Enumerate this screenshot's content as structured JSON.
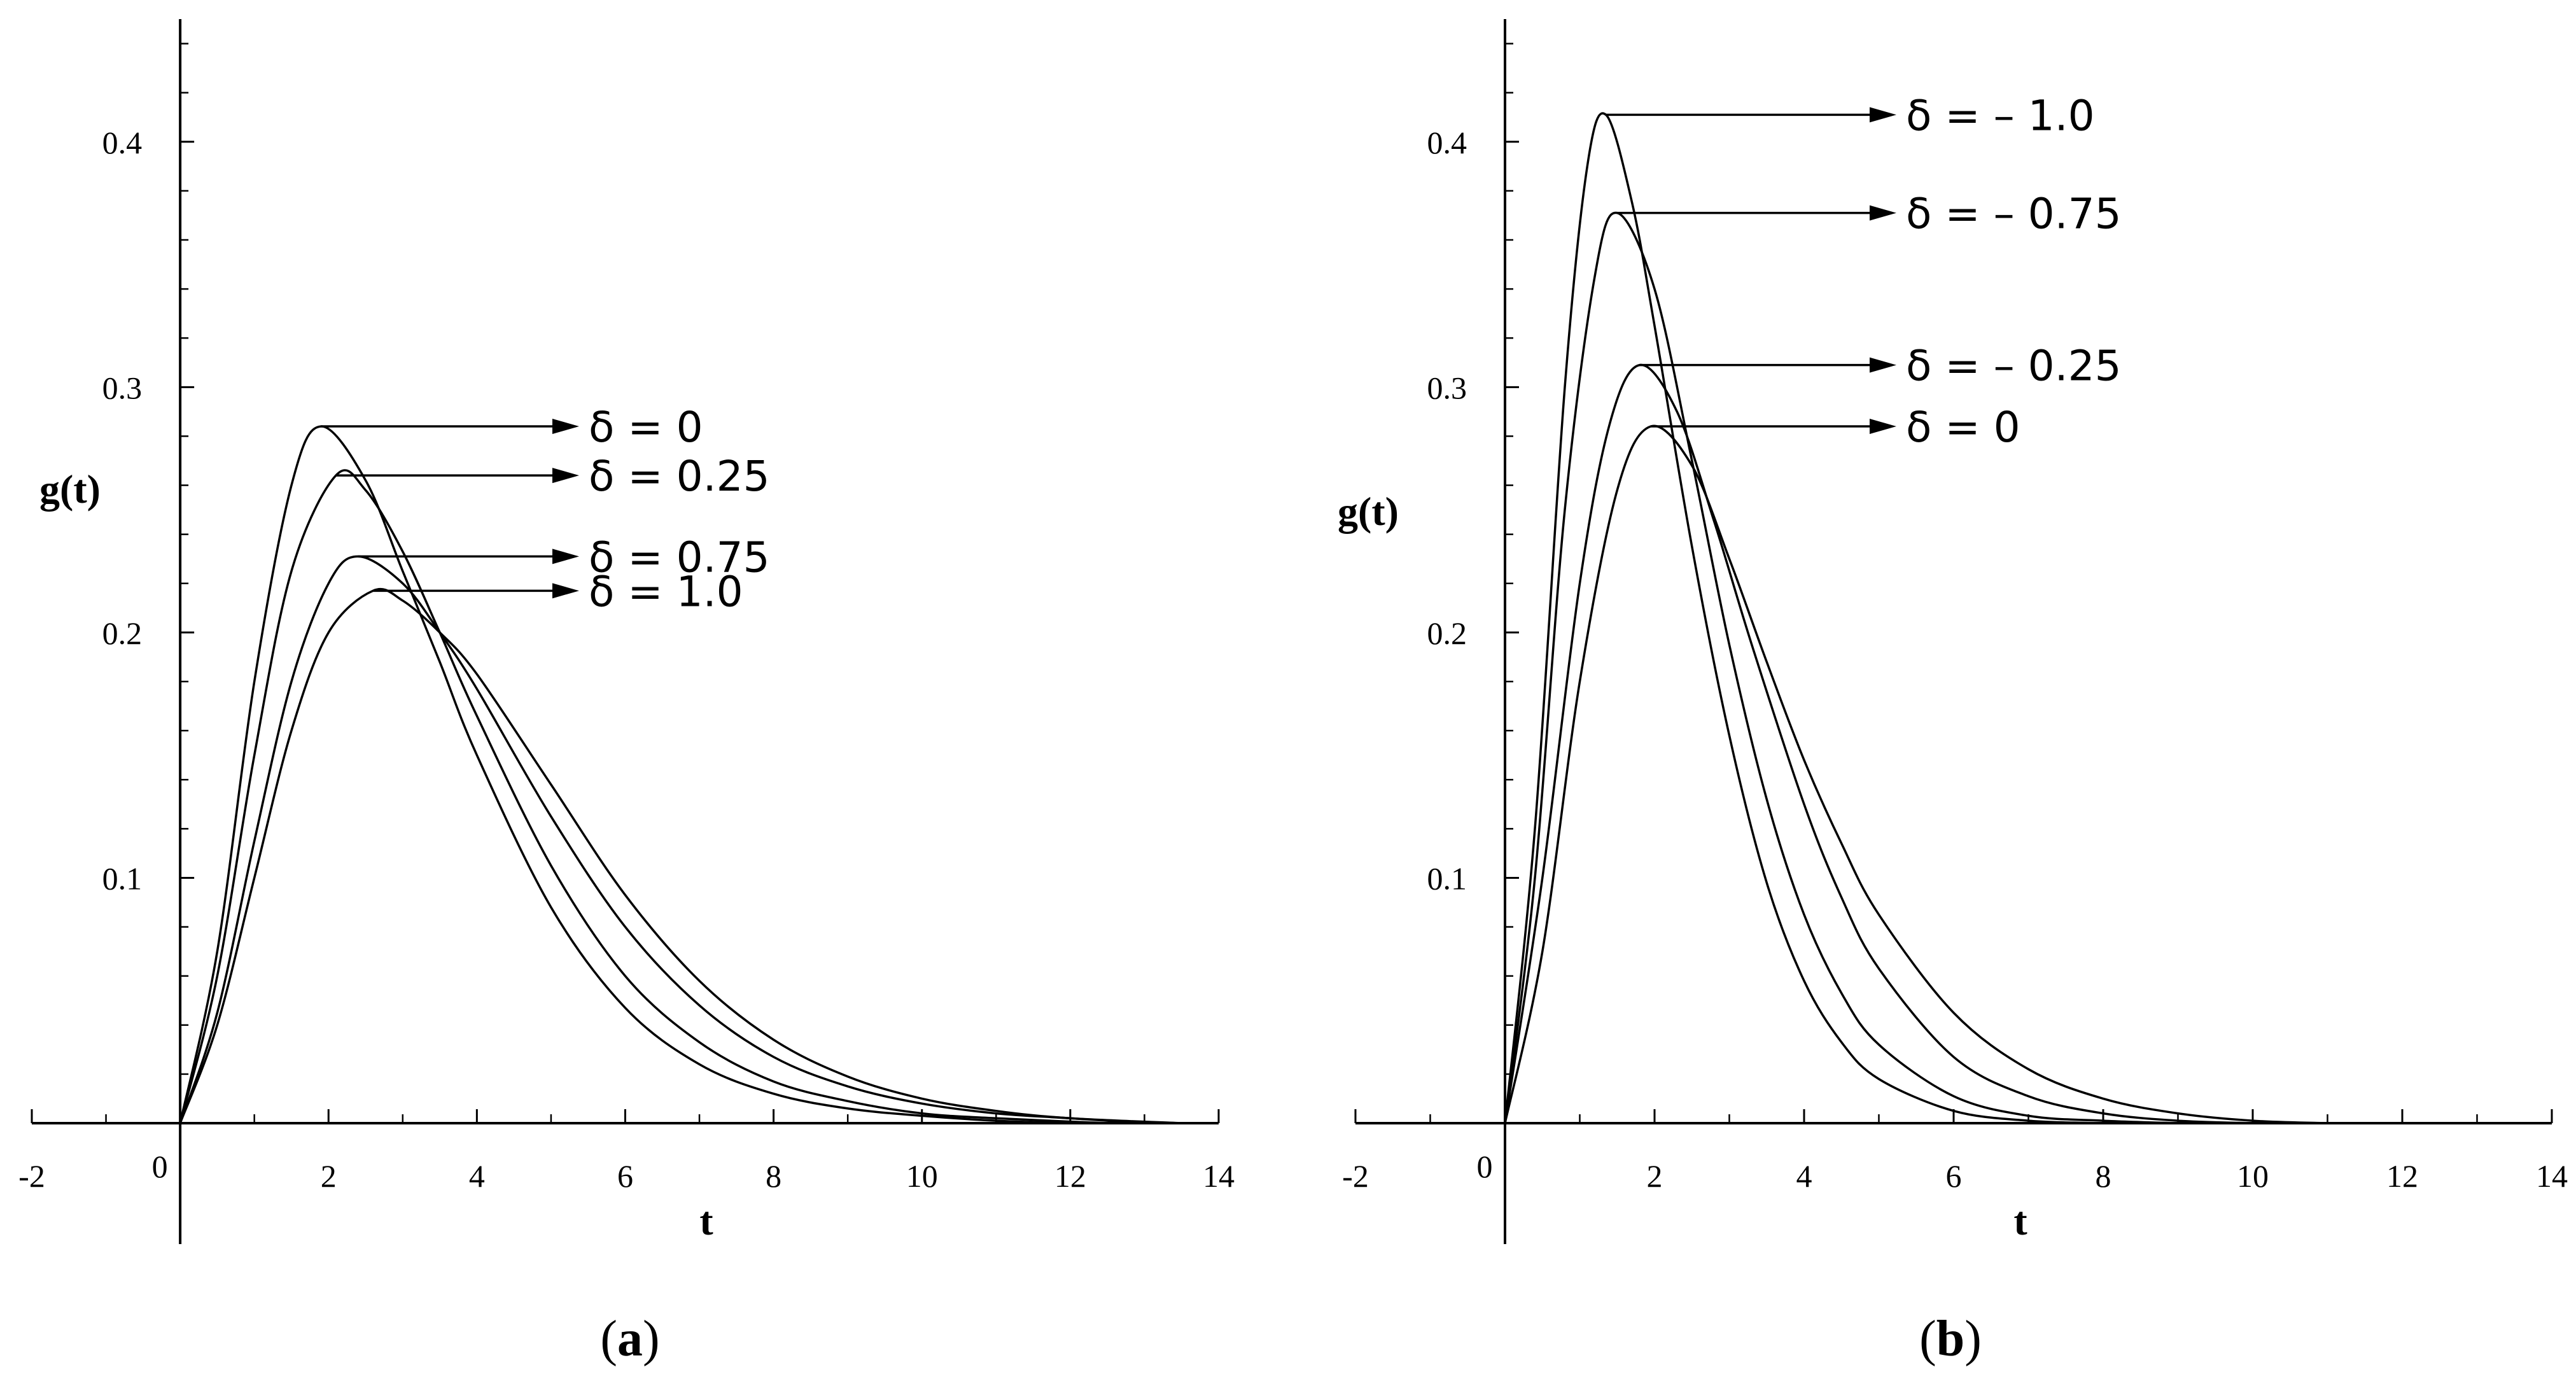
{
  "chart_data": [
    {
      "type": "line",
      "panel_label": "a",
      "xlabel": "t",
      "ylabel": "g(t)",
      "xlim": [
        -2,
        14
      ],
      "ylim": [
        0,
        0.45
      ],
      "x_ticks": [
        -2,
        0,
        2,
        4,
        6,
        8,
        10,
        12,
        14
      ],
      "x_tick_labels": [
        "-2",
        "0",
        "2",
        "4",
        "6",
        "8",
        "10",
        "12",
        "14"
      ],
      "y_ticks": [
        0.1,
        0.2,
        0.3,
        0.4
      ],
      "y_tick_labels": [
        "0.1",
        "0.2",
        "0.3",
        "0.4"
      ],
      "grid": false,
      "series": [
        {
          "name": "δ = 0",
          "peak": [
            1.9,
            0.284
          ],
          "x": [
            0,
            0.5,
            1,
            1.5,
            1.9,
            2.5,
            3,
            3.5,
            4,
            5,
            6,
            7,
            8,
            9,
            10,
            11,
            12
          ],
          "y": [
            0,
            0.07,
            0.18,
            0.26,
            0.284,
            0.262,
            0.225,
            0.188,
            0.15,
            0.088,
            0.047,
            0.024,
            0.012,
            0.006,
            0.003,
            0.001,
            0
          ]
        },
        {
          "name": "δ = 0.25",
          "peak": [
            2.1,
            0.264
          ],
          "x": [
            0,
            0.5,
            1,
            1.5,
            2.1,
            2.5,
            3,
            3.5,
            4,
            5,
            6,
            7,
            8,
            9,
            10,
            11,
            12.5
          ],
          "y": [
            0,
            0.06,
            0.15,
            0.225,
            0.264,
            0.258,
            0.233,
            0.2,
            0.166,
            0.105,
            0.06,
            0.033,
            0.017,
            0.009,
            0.004,
            0.002,
            0
          ]
        },
        {
          "name": "δ = 0.75",
          "peak": [
            2.4,
            0.231
          ],
          "x": [
            0,
            0.5,
            1,
            1.5,
            2,
            2.4,
            3,
            3.5,
            4,
            5,
            6,
            7,
            8,
            9,
            10,
            11,
            12,
            13
          ],
          "y": [
            0,
            0.045,
            0.115,
            0.18,
            0.22,
            0.231,
            0.22,
            0.2,
            0.177,
            0.125,
            0.08,
            0.048,
            0.027,
            0.015,
            0.008,
            0.004,
            0.002,
            0
          ]
        },
        {
          "name": "δ = 1.0",
          "peak": [
            2.6,
            0.217
          ],
          "x": [
            0,
            0.5,
            1,
            1.5,
            2,
            2.6,
            3,
            3.5,
            4,
            5,
            6,
            7,
            8,
            9,
            10,
            11,
            12,
            13.5
          ],
          "y": [
            0,
            0.04,
            0.1,
            0.16,
            0.2,
            0.217,
            0.213,
            0.2,
            0.183,
            0.138,
            0.093,
            0.058,
            0.034,
            0.019,
            0.01,
            0.005,
            0.002,
            0
          ]
        }
      ],
      "annotations": [
        {
          "label": "δ = 0",
          "series": 0,
          "text_y": 0.284
        },
        {
          "label": "δ = 0.25",
          "series": 1,
          "text_y": 0.264
        },
        {
          "label": "δ = 0.75",
          "series": 2,
          "text_y": 0.231
        },
        {
          "label": "δ = 1.0",
          "series": 3,
          "text_y": 0.217
        }
      ]
    },
    {
      "type": "line",
      "panel_label": "b",
      "xlabel": "t",
      "ylabel": "g(t)",
      "xlim": [
        -2,
        14
      ],
      "ylim": [
        0,
        0.45
      ],
      "x_ticks": [
        -2,
        0,
        2,
        4,
        6,
        8,
        10,
        12,
        14
      ],
      "x_tick_labels": [
        "-2",
        "0",
        "2",
        "4",
        "6",
        "8",
        "10",
        "12",
        "14"
      ],
      "y_ticks": [
        0.1,
        0.2,
        0.3,
        0.4
      ],
      "y_tick_labels": [
        "0.1",
        "0.2",
        "0.3",
        "0.4"
      ],
      "grid": false,
      "series": [
        {
          "name": "δ = – 1.0",
          "peak": [
            1.35,
            0.411
          ],
          "x": [
            0,
            0.4,
            0.8,
            1.1,
            1.35,
            1.7,
            2,
            2.5,
            3,
            3.5,
            4,
            4.5,
            5,
            6,
            7,
            8
          ],
          "y": [
            0,
            0.12,
            0.3,
            0.39,
            0.411,
            0.375,
            0.325,
            0.235,
            0.158,
            0.098,
            0.058,
            0.033,
            0.018,
            0.005,
            0.001,
            0
          ]
        },
        {
          "name": "δ = – 0.75",
          "peak": [
            1.5,
            0.371
          ],
          "x": [
            0,
            0.4,
            0.8,
            1.2,
            1.5,
            2,
            2.5,
            3,
            3.5,
            4,
            4.5,
            5,
            6,
            7,
            8,
            9
          ],
          "y": [
            0,
            0.1,
            0.25,
            0.345,
            0.371,
            0.34,
            0.27,
            0.195,
            0.132,
            0.085,
            0.053,
            0.032,
            0.011,
            0.003,
            0.001,
            0
          ]
        },
        {
          "name": "δ = – 0.25",
          "peak": [
            1.8,
            0.309
          ],
          "x": [
            0,
            0.5,
            1,
            1.4,
            1.8,
            2.3,
            2.8,
            3.3,
            4,
            4.5,
            5,
            6,
            7,
            8,
            9,
            10
          ],
          "y": [
            0,
            0.1,
            0.22,
            0.285,
            0.309,
            0.29,
            0.245,
            0.195,
            0.13,
            0.092,
            0.063,
            0.027,
            0.011,
            0.004,
            0.001,
            0
          ]
        },
        {
          "name": "δ = 0",
          "peak": [
            1.95,
            0.284
          ],
          "x": [
            0,
            0.5,
            1,
            1.5,
            1.95,
            2.5,
            3,
            3.5,
            4,
            4.5,
            5,
            6,
            7,
            8,
            9,
            10,
            11
          ],
          "y": [
            0,
            0.07,
            0.18,
            0.258,
            0.284,
            0.268,
            0.23,
            0.188,
            0.148,
            0.114,
            0.085,
            0.045,
            0.022,
            0.01,
            0.004,
            0.001,
            0
          ]
        }
      ],
      "annotations": [
        {
          "label": "δ = – 1.0",
          "series": 0,
          "text_y": 0.411
        },
        {
          "label": "δ = – 0.75",
          "series": 1,
          "text_y": 0.371
        },
        {
          "label": "δ = – 0.25",
          "series": 2,
          "text_y": 0.309
        },
        {
          "label": "δ = 0",
          "series": 3,
          "text_y": 0.284
        }
      ]
    }
  ]
}
